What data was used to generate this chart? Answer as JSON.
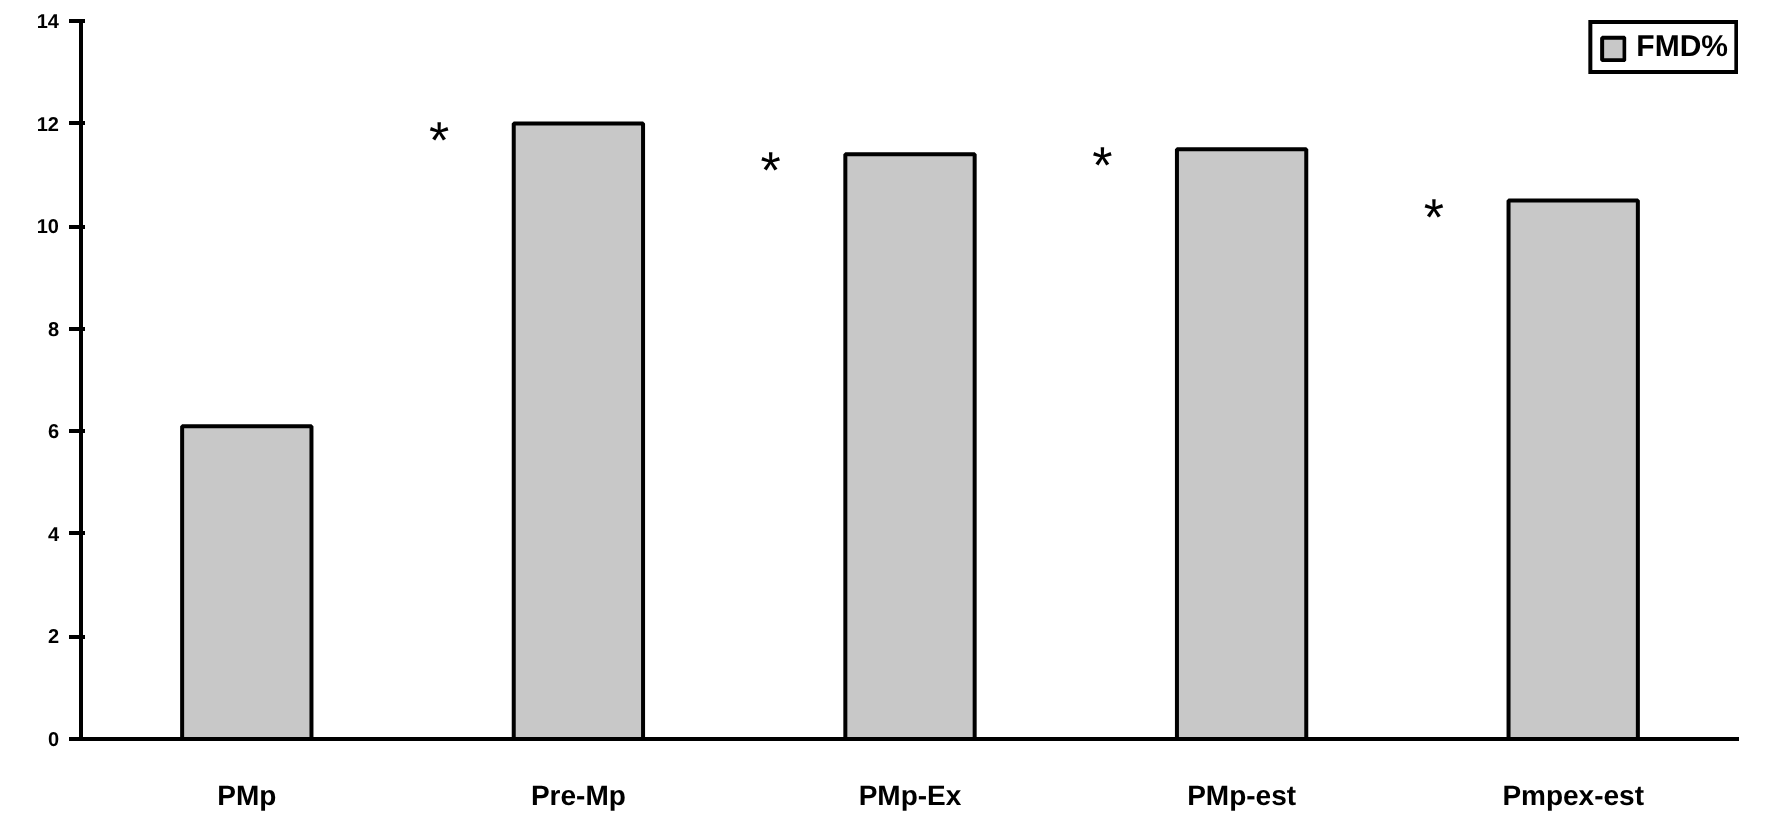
{
  "chart_data": {
    "type": "bar",
    "categories": [
      "PMp",
      "Pre-Mp",
      "PMp-Ex",
      "PMp-est",
      "Pmpex-est"
    ],
    "series": [
      {
        "name": "FMD%",
        "color": "#c8c8c8",
        "values": [
          6.1,
          12.0,
          11.4,
          11.5,
          10.5
        ]
      }
    ],
    "ylim": [
      0,
      14
    ],
    "yticks": [
      0,
      2,
      4,
      6,
      8,
      10,
      12,
      14
    ],
    "grid": false,
    "legend": "top right",
    "annotations": [
      {
        "text": "*",
        "x": "Pre-Mp",
        "y": 12.0
      },
      {
        "text": "*",
        "x": "PMp-Ex",
        "y": 11.4
      },
      {
        "text": "*",
        "x": "PMp-est",
        "y": 11.5
      },
      {
        "text": "*",
        "x": "Pmpex-est",
        "y": 10.5
      }
    ]
  }
}
